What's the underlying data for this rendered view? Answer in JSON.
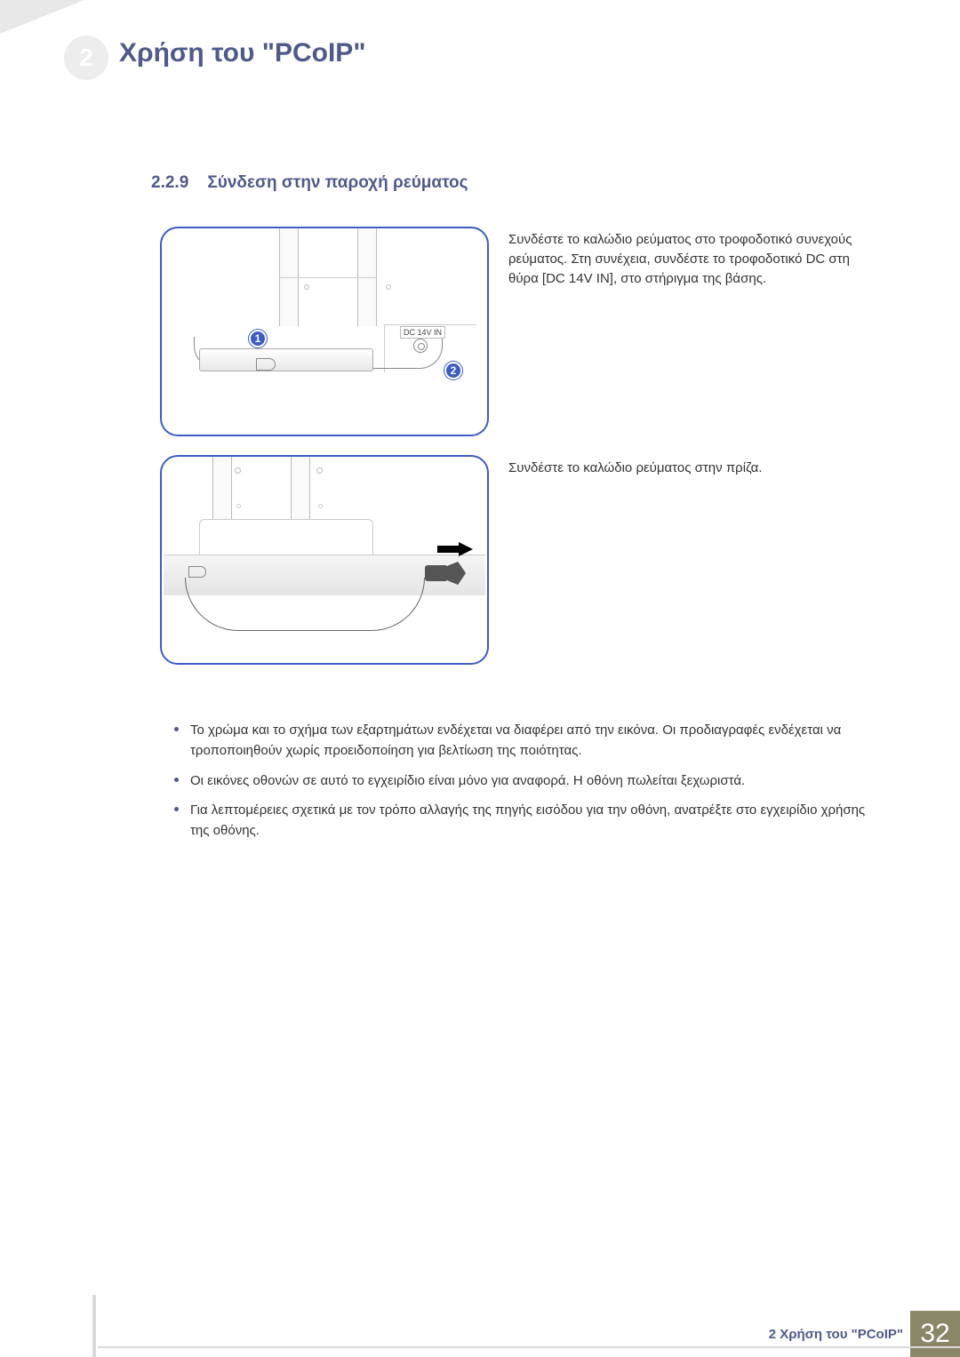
{
  "colors": {
    "accent": "#4f5a8a",
    "diagram_border": "#3d5cc4",
    "footer_block": "#8a8668",
    "text": "#333333"
  },
  "header": {
    "circle_number": "2",
    "title": "Χρήση του \"PCoIP\""
  },
  "section": {
    "number": "2.2.9",
    "title": "Σύνδεση στην παροχή ρεύματος"
  },
  "steps": [
    {
      "text": "Συνδέστε το καλώδιο ρεύματος στο τροφοδοτικό συνεχούς ρεύματος. Στη συνέχεια, συνδέστε το τροφοδοτικό DC στη θύρα [DC 14V IN], στο στήριγμα της βάσης.",
      "port_label": "DC 14V IN",
      "markers": [
        "1",
        "2"
      ]
    },
    {
      "text": "Συνδέστε το καλώδιο ρεύματος στην πρίζα."
    }
  ],
  "notes": [
    "Το χρώμα και το σχήμα των εξαρτημάτων ενδέχεται να διαφέρει από την εικόνα. Οι προδιαγραφές ενδέχεται να τροποποιηθούν χωρίς προειδοποίηση για βελτίωση της ποιότητας.",
    "Οι εικόνες οθονών σε αυτό το εγχειρίδιο είναι μόνο για αναφορά. Η οθόνη πωλείται ξεχωριστά.",
    "Για λεπτομέρειες σχετικά με τον τρόπο αλλαγής της πηγής εισόδου για την οθόνη, ανατρέξτε στο εγχειρίδιο χρήσης της οθόνης."
  ],
  "footer": {
    "text": "2 Χρήση του \"PCoIP\"",
    "page": "32"
  }
}
